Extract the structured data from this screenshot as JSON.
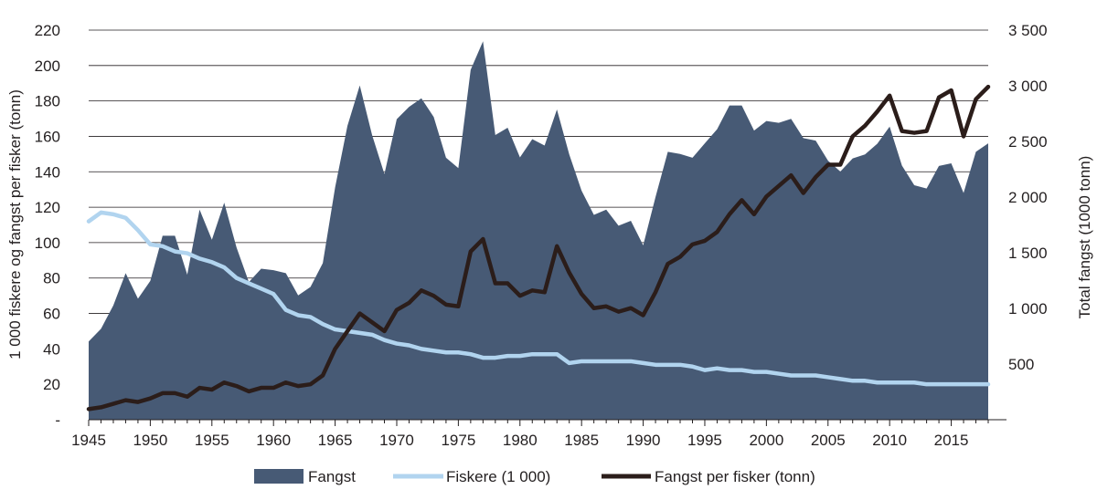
{
  "chart_data": {
    "type": "area",
    "title": "",
    "xlabel": "",
    "ylabel_left": "1 000 fiskere og fangst per fisker (tonn)",
    "ylabel_right": "Total fangst (1000 tonn)",
    "x_ticks": [
      "1945",
      "1950",
      "1955",
      "1960",
      "1965",
      "1970",
      "1975",
      "1980",
      "1985",
      "1990",
      "1995",
      "2000",
      "2005",
      "2010",
      "2015"
    ],
    "y_left_ticks": [
      "-",
      "20",
      "40",
      "60",
      "80",
      "100",
      "120",
      "140",
      "160",
      "180",
      "200",
      "220"
    ],
    "y_left_tick_values": [
      0,
      20,
      40,
      60,
      80,
      100,
      120,
      140,
      160,
      180,
      200,
      220
    ],
    "y_right_ticks": [
      "500",
      "1 000",
      "1 500",
      "2 000",
      "2 500",
      "3 000",
      "3 500"
    ],
    "y_right_tick_values": [
      500,
      1000,
      1500,
      2000,
      2500,
      3000,
      3500
    ],
    "ylim_left": [
      0,
      220
    ],
    "ylim_right": [
      0,
      3500
    ],
    "xlim": [
      1945,
      2018
    ],
    "grid": "horizontal",
    "legend_position": "bottom",
    "legend": [
      "Fangst",
      "Fiskere (1 000)",
      "Fangst per fisker (tonn)"
    ],
    "colors": {
      "fangst": "#475a75",
      "fiskere": "#b1d4ef",
      "fangst_per_fisker": "#2b1d1a"
    },
    "x": [
      1945,
      1946,
      1947,
      1948,
      1949,
      1950,
      1951,
      1952,
      1953,
      1954,
      1955,
      1956,
      1957,
      1958,
      1959,
      1960,
      1961,
      1962,
      1963,
      1964,
      1965,
      1966,
      1967,
      1968,
      1969,
      1970,
      1971,
      1972,
      1973,
      1974,
      1975,
      1976,
      1977,
      1978,
      1979,
      1980,
      1981,
      1982,
      1983,
      1984,
      1985,
      1986,
      1987,
      1988,
      1989,
      1990,
      1991,
      1992,
      1993,
      1994,
      1995,
      1996,
      1997,
      1998,
      1999,
      2000,
      2001,
      2002,
      2003,
      2004,
      2005,
      2006,
      2007,
      2008,
      2009,
      2010,
      2011,
      2012,
      2013,
      2014,
      2015,
      2016,
      2017,
      2018
    ],
    "series": [
      {
        "name": "Fangst",
        "axis": "right",
        "style": "area",
        "values": [
          703,
          817,
          1027,
          1317,
          1087,
          1247,
          1653,
          1653,
          1303,
          1887,
          1617,
          1950,
          1547,
          1237,
          1357,
          1343,
          1317,
          1117,
          1193,
          1407,
          2087,
          2640,
          3003,
          2557,
          2207,
          2700,
          2810,
          2887,
          2720,
          2353,
          2260,
          3143,
          3400,
          2557,
          2623,
          2357,
          2520,
          2463,
          2787,
          2383,
          2057,
          1840,
          1887,
          1743,
          1787,
          1567,
          2000,
          2407,
          2387,
          2353,
          2483,
          2610,
          2823,
          2823,
          2597,
          2683,
          2667,
          2703,
          2530,
          2507,
          2327,
          2230,
          2347,
          2383,
          2480,
          2633,
          2283,
          2107,
          2077,
          2280,
          2303,
          2037,
          2407,
          2483
        ]
      },
      {
        "name": "Fiskere (1 000)",
        "axis": "left",
        "style": "line",
        "values": [
          112,
          117,
          116,
          114,
          107,
          99,
          98,
          95,
          94,
          91,
          89,
          86,
          80,
          77,
          74,
          71,
          62,
          59,
          58,
          54,
          51,
          50,
          49,
          48,
          45,
          43,
          42,
          40,
          39,
          38,
          38,
          37,
          35,
          35,
          36,
          36,
          37,
          37,
          37,
          32,
          33,
          33,
          33,
          33,
          33,
          32,
          31,
          31,
          31,
          30,
          28,
          29,
          28,
          28,
          27,
          27,
          26,
          25,
          25,
          25,
          24,
          23,
          22,
          22,
          21,
          21,
          21,
          21,
          20,
          20,
          20,
          20,
          20,
          20
        ]
      },
      {
        "name": "Fangst per fisker (tonn)",
        "axis": "left",
        "style": "line",
        "values": [
          6,
          7,
          9,
          11,
          10,
          12,
          15,
          15,
          13,
          18,
          17,
          21,
          19,
          16,
          18,
          18,
          21,
          19,
          20,
          25,
          40,
          50,
          60,
          55,
          50,
          62,
          66,
          73,
          70,
          65,
          64,
          95,
          102,
          77,
          77,
          70,
          73,
          72,
          98,
          83,
          71,
          63,
          64,
          61,
          63,
          59,
          72,
          88,
          92,
          99,
          101,
          106,
          116,
          124,
          116,
          126,
          132,
          138,
          128,
          137,
          144,
          144,
          160,
          166,
          174,
          183,
          163,
          162,
          163,
          182,
          186,
          160,
          181,
          188
        ]
      }
    ]
  }
}
